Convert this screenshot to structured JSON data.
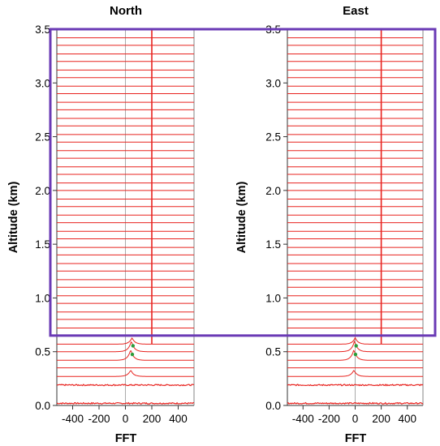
{
  "chart_data": [
    {
      "type": "line",
      "title": "North",
      "xlabel": "FFT",
      "ylabel": "Altitude (km)",
      "xlim": [
        -520,
        520
      ],
      "ylim": [
        0,
        3.5
      ],
      "xticks": [
        "-400",
        "-200",
        "0",
        "200",
        "400"
      ],
      "xtick_values": [
        -400,
        -200,
        0,
        200,
        400
      ],
      "yticks": [
        "0.0",
        "0.5",
        "1.0",
        "1.5",
        "2.0",
        "2.5",
        "3.0",
        "3.5"
      ],
      "ytick_values": [
        0,
        0.5,
        1.0,
        1.5,
        2.0,
        2.5,
        3.0,
        3.5
      ],
      "range_gate_altitudes": [
        0.02,
        0.19,
        0.27,
        0.35,
        0.42,
        0.5,
        0.57,
        0.65,
        0.72,
        0.8,
        0.87,
        0.95,
        1.02,
        1.1,
        1.17,
        1.25,
        1.32,
        1.4,
        1.47,
        1.55,
        1.62,
        1.7,
        1.77,
        1.85,
        1.92,
        2.0,
        2.07,
        2.15,
        2.22,
        2.3,
        2.37,
        2.45,
        2.52,
        2.6,
        2.67,
        2.75,
        2.82,
        2.9,
        2.97,
        3.05,
        3.12,
        3.2,
        3.27,
        3.35,
        3.42,
        3.5
      ],
      "marker_frequency": 200,
      "zero_line": 0,
      "peaks": [
        {
          "altitude": 0.27,
          "center": 40,
          "height": 0.06
        },
        {
          "altitude": 0.42,
          "center": 40,
          "height": 0.1
        },
        {
          "altitude": 0.5,
          "center": 45,
          "height": 0.1
        },
        {
          "altitude": 0.57,
          "center": 50,
          "height": 0.06
        }
      ],
      "highlight": {
        "from_altitude": 0.65,
        "to_altitude": 3.5
      },
      "colors": {
        "trace": "#e8231f",
        "marker": "#e8231f",
        "zero": "#aaaaaa",
        "peak_dot": "#2a9d3a",
        "highlight": "#6a3ab5"
      }
    },
    {
      "type": "line",
      "title": "East",
      "xlabel": "FFT",
      "ylabel": "Altitude (km)",
      "xlim": [
        -520,
        520
      ],
      "ylim": [
        0,
        3.5
      ],
      "xticks": [
        "-400",
        "-200",
        "0",
        "200",
        "400"
      ],
      "xtick_values": [
        -400,
        -200,
        0,
        200,
        400
      ],
      "yticks": [
        "0.0",
        "0.5",
        "1.0",
        "1.5",
        "2.0",
        "2.5",
        "3.0",
        "3.5"
      ],
      "ytick_values": [
        0,
        0.5,
        1.0,
        1.5,
        2.0,
        2.5,
        3.0,
        3.5
      ],
      "range_gate_altitudes": [
        0.02,
        0.19,
        0.27,
        0.35,
        0.42,
        0.5,
        0.57,
        0.65,
        0.72,
        0.8,
        0.87,
        0.95,
        1.02,
        1.1,
        1.17,
        1.25,
        1.32,
        1.4,
        1.47,
        1.55,
        1.62,
        1.7,
        1.77,
        1.85,
        1.92,
        2.0,
        2.07,
        2.15,
        2.22,
        2.3,
        2.37,
        2.45,
        2.52,
        2.6,
        2.67,
        2.75,
        2.82,
        2.9,
        2.97,
        3.05,
        3.12,
        3.2,
        3.27,
        3.35,
        3.42,
        3.5
      ],
      "marker_frequency": 200,
      "zero_line": 0,
      "peaks": [
        {
          "altitude": 0.27,
          "center": -10,
          "height": 0.06
        },
        {
          "altitude": 0.42,
          "center": -10,
          "height": 0.1
        },
        {
          "altitude": 0.5,
          "center": -5,
          "height": 0.1
        },
        {
          "altitude": 0.57,
          "center": 0,
          "height": 0.06
        }
      ],
      "highlight": {
        "from_altitude": 0.65,
        "to_altitude": 3.5
      },
      "colors": {
        "trace": "#e8231f",
        "marker": "#e8231f",
        "zero": "#aaaaaa",
        "peak_dot": "#2a9d3a",
        "highlight": "#6a3ab5"
      }
    }
  ]
}
